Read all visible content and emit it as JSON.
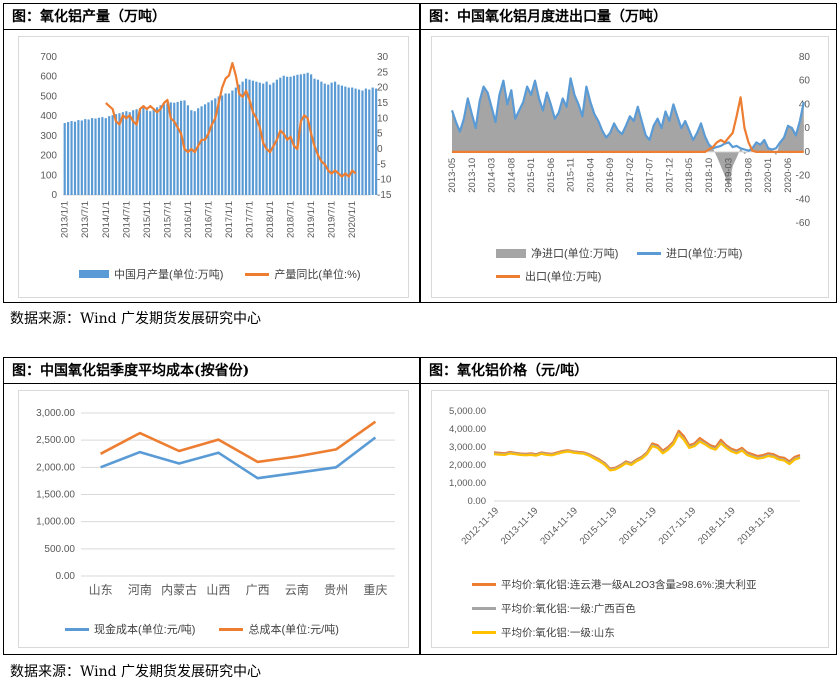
{
  "source_note_top": "数据来源：Wind  广发期货发展研究中心",
  "source_note_bottom": "数据来源：Wind  广发期货发展研究中心",
  "colors": {
    "blue": "#5b9bd5",
    "orange": "#ed7d31",
    "gray": "#a5a5a5",
    "yellow": "#ffc000",
    "grid": "#d9d9d9",
    "axis_text": "#595959"
  },
  "chart_data": [
    {
      "id": "production",
      "type": "bar+line",
      "title": "图：氧化铝产量（万吨）",
      "ylim_left": [
        0,
        700
      ],
      "yticks_left": [
        "0",
        "100",
        "200",
        "300",
        "400",
        "500",
        "600",
        "700"
      ],
      "ylim_right": [
        -15,
        30
      ],
      "yticks_right": [
        "-15",
        "-10",
        "-5",
        "0",
        "5",
        "10",
        "15",
        "20",
        "25",
        "30"
      ],
      "x_ticks": [
        "2013/1/1",
        "2013/7/1",
        "2014/1/1",
        "2014/7/1",
        "2015/1/1",
        "2015/7/1",
        "2016/1/1",
        "2016/7/1",
        "2017/1/1",
        "2017/7/1",
        "2018/1/1",
        "2018/7/1",
        "2019/1/1",
        "2019/7/1",
        "2020/1/1"
      ],
      "series": [
        {
          "name": "中国月产量(单位:万吨)",
          "kind": "bar",
          "axis": "left",
          "start": "2013-01",
          "values": [
            365,
            370,
            375,
            372,
            380,
            378,
            385,
            383,
            390,
            388,
            392,
            395,
            390,
            400,
            405,
            410,
            415,
            420,
            425,
            420,
            430,
            435,
            440,
            445,
            430,
            425,
            440,
            445,
            455,
            460,
            465,
            470,
            468,
            472,
            478,
            480,
            455,
            430,
            425,
            440,
            450,
            460,
            470,
            480,
            490,
            500,
            505,
            515,
            515,
            530,
            545,
            560,
            575,
            590,
            585,
            580,
            575,
            570,
            565,
            575,
            560,
            570,
            585,
            595,
            605,
            600,
            600,
            605,
            610,
            612,
            615,
            620,
            612,
            590,
            585,
            575,
            565,
            560,
            570,
            575,
            560,
            555,
            550,
            545,
            545,
            540,
            535,
            530,
            540,
            535,
            545,
            540
          ]
        },
        {
          "name": "产量同比(单位:%)",
          "kind": "line",
          "axis": "right",
          "start": "2014-01",
          "values": [
            15,
            14,
            13,
            9,
            8,
            11,
            10,
            11,
            9,
            8,
            13,
            14,
            13,
            14,
            13,
            12,
            13,
            15,
            16,
            10,
            9,
            7,
            5,
            0,
            -1,
            0,
            -1,
            1,
            3,
            3,
            5,
            8,
            10,
            15,
            20,
            23,
            24,
            28,
            24,
            18,
            17,
            19,
            16,
            12,
            10,
            7,
            2,
            0,
            -1,
            1,
            3,
            6,
            5,
            3,
            4,
            1,
            0,
            9,
            11,
            10,
            5,
            1,
            -2,
            -4,
            -5,
            -7,
            -8,
            -7,
            -8,
            -9,
            -8,
            -9,
            -7,
            -8
          ]
        }
      ]
    },
    {
      "id": "trade",
      "type": "area+line",
      "title": "图：中国氧化铝月度进出口量（万吨）",
      "ylim": [
        -60,
        80
      ],
      "yticks": [
        "-60",
        "-40",
        "-20",
        "0",
        "20",
        "40",
        "60",
        "80"
      ],
      "x_ticks": [
        "2013-05",
        "2013-10",
        "2014-03",
        "2014-08",
        "2015-01",
        "2015-06",
        "2015-11",
        "2016-04",
        "2016-09",
        "2017-02",
        "2017-07",
        "2017-12",
        "2018-05",
        "2018-10",
        "2019-03",
        "2019-08",
        "2020-01",
        "2020-06"
      ],
      "series": [
        {
          "name": "净进口(单位:万吨)",
          "kind": "area",
          "start": "2013-05",
          "values": [
            35,
            25,
            17,
            28,
            45,
            32,
            20,
            43,
            55,
            50,
            38,
            25,
            48,
            60,
            40,
            52,
            28,
            35,
            42,
            55,
            48,
            60,
            45,
            35,
            50,
            40,
            28,
            33,
            45,
            38,
            62,
            48,
            40,
            30,
            55,
            42,
            32,
            26,
            18,
            12,
            16,
            24,
            18,
            15,
            22,
            30,
            26,
            38,
            26,
            14,
            10,
            22,
            28,
            20,
            34,
            26,
            40,
            30,
            20,
            26,
            18,
            10,
            16,
            24,
            13,
            6,
            3,
            -4,
            -12,
            -20,
            -30,
            -12,
            -5,
            3,
            -2,
            1,
            3,
            8,
            6,
            10,
            3,
            2,
            -3,
            8,
            12,
            22,
            20,
            14,
            26,
            40
          ]
        },
        {
          "name": "进口(单位:万吨)",
          "kind": "line",
          "start": "2013-05",
          "values": [
            35,
            25,
            17,
            28,
            45,
            32,
            20,
            43,
            55,
            50,
            38,
            25,
            48,
            60,
            40,
            52,
            28,
            35,
            42,
            55,
            48,
            60,
            45,
            35,
            50,
            40,
            28,
            33,
            45,
            38,
            62,
            48,
            40,
            30,
            55,
            42,
            32,
            26,
            18,
            12,
            16,
            24,
            18,
            15,
            22,
            30,
            26,
            38,
            26,
            14,
            10,
            22,
            28,
            20,
            34,
            26,
            40,
            30,
            20,
            26,
            18,
            10,
            16,
            24,
            13,
            6,
            3,
            4,
            5,
            7,
            8,
            4,
            5,
            3,
            2,
            1,
            3,
            8,
            6,
            10,
            3,
            2,
            3,
            8,
            12,
            22,
            20,
            14,
            26,
            42
          ]
        },
        {
          "name": "出口(单位:万吨)",
          "kind": "line",
          "start": "2013-05",
          "values": [
            0,
            0,
            0,
            0,
            0,
            0,
            0,
            0,
            0,
            0,
            0,
            0,
            0,
            0,
            0,
            0,
            0,
            0,
            0,
            0,
            0,
            0,
            0,
            0,
            0,
            0,
            0,
            0,
            0,
            0,
            0,
            0,
            0,
            0,
            0,
            0,
            0,
            0,
            0,
            0,
            0,
            0,
            0,
            0,
            0,
            0,
            0,
            0,
            0,
            0,
            0,
            0,
            0,
            0,
            0,
            0,
            0,
            0,
            0,
            0,
            0,
            0,
            0,
            0,
            0,
            2,
            4,
            8,
            10,
            8,
            12,
            16,
            30,
            46,
            20,
            8,
            1,
            0,
            0,
            0,
            0,
            0,
            0,
            0,
            0,
            0,
            0,
            0,
            0,
            0
          ]
        }
      ]
    },
    {
      "id": "cost",
      "type": "line",
      "title": "图：中国氧化铝季度平均成本(按省份)",
      "categories": [
        "山东",
        "河南",
        "内蒙古",
        "山西",
        "广西",
        "云南",
        "贵州",
        "重庆"
      ],
      "ylim": [
        0,
        3000
      ],
      "yticks": [
        "0.00",
        "500.00",
        "1,000.00",
        "1,500.00",
        "2,000.00",
        "2,500.00",
        "3,000.00"
      ],
      "series": [
        {
          "name": "现金成本(单位:元/吨)",
          "values": [
            2000,
            2280,
            2070,
            2270,
            1800,
            1900,
            2000,
            2550
          ]
        },
        {
          "name": "总成本(单位:元/吨)",
          "values": [
            2250,
            2630,
            2300,
            2510,
            2100,
            2200,
            2330,
            2840
          ]
        }
      ]
    },
    {
      "id": "price",
      "type": "line",
      "title": "图：氧化铝价格（元/吨）",
      "ylim": [
        0,
        5000
      ],
      "yticks": [
        "0.00",
        "1,000.00",
        "2,000.00",
        "3,000.00",
        "4,000.00",
        "5,000.00"
      ],
      "x_ticks": [
        "2012-11-19",
        "2013-11-19",
        "2014-11-19",
        "2015-11-19",
        "2016-11-19",
        "2017-11-19",
        "2018-11-19",
        "2019-11-19"
      ],
      "series": [
        {
          "name": "平均价:氧化铝:连云港一级AL2O3含量≥98.6%:澳大利亚",
          "values": [
            2700,
            2680,
            2650,
            2720,
            2680,
            2640,
            2620,
            2650,
            2600,
            2700,
            2650,
            2620,
            2700,
            2780,
            2820,
            2760,
            2720,
            2700,
            2600,
            2450,
            2300,
            2100,
            1800,
            1850,
            2000,
            2200,
            2100,
            2300,
            2450,
            2700,
            3200,
            3100,
            2800,
            3000,
            3300,
            3900,
            3600,
            3100,
            3200,
            3500,
            3300,
            3100,
            3000,
            3400,
            3100,
            2900,
            2800,
            2950,
            2700,
            2600,
            2500,
            2550,
            2650,
            2600,
            2450,
            2400,
            2200,
            2450,
            2550
          ]
        },
        {
          "name": "平均价:氧化铝:一级:广西百色",
          "values": [
            2650,
            2620,
            2600,
            2680,
            2640,
            2600,
            2580,
            2600,
            2560,
            2660,
            2600,
            2580,
            2650,
            2730,
            2780,
            2720,
            2680,
            2660,
            2560,
            2400,
            2250,
            2050,
            1750,
            1800,
            1950,
            2150,
            2050,
            2250,
            2400,
            2650,
            3100,
            3000,
            2700,
            2900,
            3200,
            3750,
            3450,
            3000,
            3100,
            3350,
            3200,
            3000,
            2900,
            3250,
            3000,
            2800,
            2700,
            2850,
            2600,
            2500,
            2400,
            2450,
            2550,
            2500,
            2350,
            2300,
            2100,
            2350,
            2450
          ]
        },
        {
          "name": "平均价:氧化铝:一级:山东",
          "values": [
            2600,
            2580,
            2560,
            2640,
            2600,
            2560,
            2540,
            2560,
            2520,
            2620,
            2560,
            2540,
            2620,
            2700,
            2750,
            2690,
            2650,
            2630,
            2520,
            2360,
            2200,
            2000,
            1700,
            1750,
            1900,
            2100,
            2000,
            2200,
            2350,
            2600,
            3050,
            2950,
            2650,
            2850,
            3150,
            3700,
            3400,
            2950,
            3050,
            3300,
            3150,
            2950,
            2850,
            3200,
            2950,
            2750,
            2650,
            2800,
            2550,
            2450,
            2350,
            2400,
            2500,
            2450,
            2300,
            2250,
            2050,
            2300,
            2400
          ]
        }
      ]
    }
  ]
}
